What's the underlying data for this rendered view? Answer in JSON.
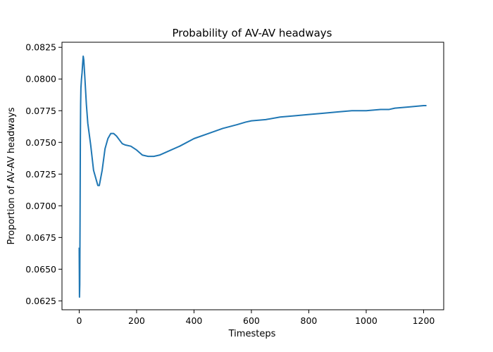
{
  "chart_data": {
    "type": "line",
    "title": "Probability of AV-AV headways",
    "xlabel": "Timesteps",
    "ylabel": "Proportion of AV-AV headways",
    "xlim": [
      -60,
      1270
    ],
    "ylim": [
      0.0618,
      0.0829
    ],
    "xticks": [
      0,
      200,
      400,
      600,
      800,
      1000,
      1200
    ],
    "xtick_labels": [
      "0",
      "200",
      "400",
      "600",
      "800",
      "1000",
      "1200"
    ],
    "yticks": [
      0.0625,
      0.065,
      0.0675,
      0.07,
      0.0725,
      0.075,
      0.0775,
      0.08,
      0.0825
    ],
    "ytick_labels": [
      "0.0625",
      "0.0650",
      "0.0675",
      "0.0700",
      "0.0725",
      "0.0750",
      "0.0775",
      "0.0800",
      "0.0825"
    ],
    "grid": false,
    "legend": "none",
    "series": [
      {
        "color": "#1f77b4",
        "x": [
          0,
          1,
          2,
          3,
          4,
          5,
          6,
          8,
          10,
          12,
          14,
          16,
          20,
          25,
          30,
          40,
          50,
          60,
          65,
          70,
          80,
          90,
          100,
          110,
          120,
          130,
          140,
          150,
          160,
          180,
          200,
          220,
          240,
          260,
          280,
          300,
          350,
          400,
          450,
          500,
          550,
          580,
          600,
          650,
          700,
          750,
          800,
          850,
          900,
          950,
          1000,
          1050,
          1080,
          1100,
          1150,
          1200,
          1210
        ],
        "y": [
          0.0667,
          0.0628,
          0.0638,
          0.069,
          0.075,
          0.078,
          0.0793,
          0.08,
          0.0805,
          0.0812,
          0.0818,
          0.0815,
          0.08,
          0.078,
          0.0765,
          0.0748,
          0.0728,
          0.072,
          0.0716,
          0.0716,
          0.0728,
          0.0745,
          0.0753,
          0.0757,
          0.0757,
          0.0755,
          0.0752,
          0.0749,
          0.0748,
          0.0747,
          0.0744,
          0.074,
          0.0739,
          0.0739,
          0.074,
          0.0742,
          0.0747,
          0.0753,
          0.0757,
          0.0761,
          0.0764,
          0.0766,
          0.0767,
          0.0768,
          0.077,
          0.0771,
          0.0772,
          0.0773,
          0.0774,
          0.0775,
          0.0775,
          0.0776,
          0.0776,
          0.0777,
          0.0778,
          0.0779,
          0.0779
        ]
      }
    ]
  }
}
